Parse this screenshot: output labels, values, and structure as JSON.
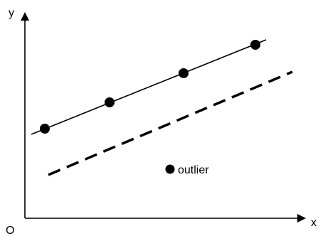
{
  "labels": {
    "origin": "O",
    "x_axis": "x",
    "y_axis": "y",
    "outlier": "outlier"
  },
  "colors": {
    "ink": "#000000",
    "background": "#ffffff"
  },
  "diagram": {
    "solid_line_points": 4,
    "dashed_line": true,
    "outlier_point": true
  }
}
